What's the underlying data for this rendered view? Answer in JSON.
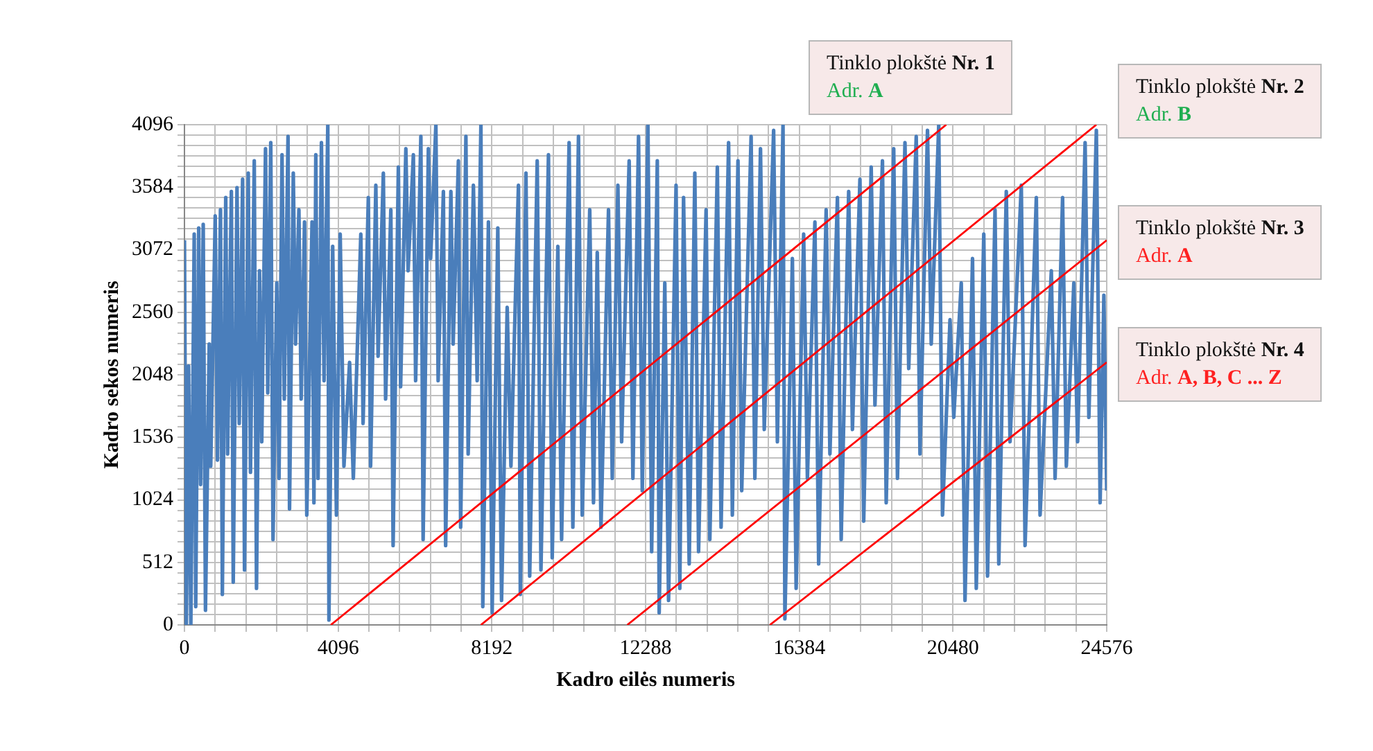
{
  "chart_data": {
    "type": "line",
    "xlabel": "Kadro eilės numeris",
    "ylabel": "Kadro sekos numeris",
    "xlim": [
      0,
      24576
    ],
    "ylim": [
      0,
      4096
    ],
    "xticks": [
      0,
      {
        "value": 819.2,
        "label": null
      },
      {
        "value": 1638.4,
        "label": null
      },
      {
        "value": 2457.6,
        "label": null
      },
      {
        "value": 3276.8,
        "label": null
      },
      4096,
      {
        "value": 4915.2,
        "label": null
      },
      {
        "value": 5734.4,
        "label": null
      },
      {
        "value": 6553.6,
        "label": null
      },
      {
        "value": 7372.8,
        "label": null
      },
      8192,
      {
        "value": 9011.2,
        "label": null
      },
      {
        "value": 9830.4,
        "label": null
      },
      {
        "value": 10649.6,
        "label": null
      },
      {
        "value": 11468.8,
        "label": null
      },
      12288,
      {
        "value": 13107.2,
        "label": null
      },
      {
        "value": 13926.4,
        "label": null
      },
      {
        "value": 14745.6,
        "label": null
      },
      {
        "value": 15564.8,
        "label": null
      },
      16384,
      {
        "value": 17203.2,
        "label": null
      },
      {
        "value": 18022.4,
        "label": null
      },
      {
        "value": 18841.6,
        "label": null
      },
      {
        "value": 19660.8,
        "label": null
      },
      20480,
      {
        "value": 21299.2,
        "label": null
      },
      {
        "value": 22118.4,
        "label": null
      },
      {
        "value": 22937.6,
        "label": null
      },
      {
        "value": 23756.8,
        "label": null
      },
      24576
    ],
    "yticks": [
      0,
      {
        "value": 85.33,
        "label": null
      },
      {
        "value": 170.67,
        "label": null
      },
      {
        "value": 256,
        "label": null
      },
      {
        "value": 341.33,
        "label": null
      },
      {
        "value": 426.67,
        "label": null
      },
      512,
      {
        "value": 597.33,
        "label": null
      },
      {
        "value": 682.67,
        "label": null
      },
      {
        "value": 768,
        "label": null
      },
      {
        "value": 853.33,
        "label": null
      },
      {
        "value": 938.67,
        "label": null
      },
      1024,
      {
        "value": 1109.33,
        "label": null
      },
      {
        "value": 1194.67,
        "label": null
      },
      {
        "value": 1280,
        "label": null
      },
      {
        "value": 1365.33,
        "label": null
      },
      {
        "value": 1450.67,
        "label": null
      },
      1536,
      {
        "value": 1621.33,
        "label": null
      },
      {
        "value": 1706.67,
        "label": null
      },
      {
        "value": 1792,
        "label": null
      },
      {
        "value": 1877.33,
        "label": null
      },
      {
        "value": 1962.67,
        "label": null
      },
      2048,
      {
        "value": 2133.33,
        "label": null
      },
      {
        "value": 2218.67,
        "label": null
      },
      {
        "value": 2304,
        "label": null
      },
      {
        "value": 2389.33,
        "label": null
      },
      {
        "value": 2474.67,
        "label": null
      },
      2560,
      {
        "value": 2645.33,
        "label": null
      },
      {
        "value": 2730.67,
        "label": null
      },
      {
        "value": 2816,
        "label": null
      },
      {
        "value": 2901.33,
        "label": null
      },
      {
        "value": 2986.67,
        "label": null
      },
      3072,
      {
        "value": 3157.33,
        "label": null
      },
      {
        "value": 3242.67,
        "label": null
      },
      {
        "value": 3328,
        "label": null
      },
      {
        "value": 3413.33,
        "label": null
      },
      {
        "value": 3498.67,
        "label": null
      },
      3584,
      {
        "value": 3669.33,
        "label": null
      },
      {
        "value": 3754.67,
        "label": null
      },
      {
        "value": 3840,
        "label": null
      },
      {
        "value": 3925.33,
        "label": null
      },
      {
        "value": 4010.67,
        "label": null
      },
      4096
    ],
    "grid": true,
    "legend": false,
    "marker": "none",
    "line_style": "solid",
    "annotations": [
      "Tinklo plokštė Nr. 1",
      "Adr. A",
      "Tinklo plokštė Nr. 2",
      "Adr. B",
      "Tinklo plokštė Nr. 3",
      "Adr. A",
      "Tinklo plokštė Nr. 4",
      "Adr. A, B, C ... Z"
    ],
    "series": [
      {
        "type": "line",
        "color": "#4a7ebb",
        "x": [
          0,
          50,
          110,
          170,
          260,
          300,
          380,
          430,
          500,
          560,
          660,
          700,
          820,
          880,
          960,
          1010,
          1100,
          1150,
          1250,
          1300,
          1400,
          1460,
          1550,
          1600,
          1700,
          1760,
          1860,
          1920,
          2000,
          2060,
          2160,
          2220,
          2300,
          2360,
          2460,
          2520,
          2600,
          2660,
          2760,
          2800,
          2900,
          2960,
          3050,
          3110,
          3200,
          3260,
          3400,
          3450,
          3500,
          3560,
          3650,
          3720,
          3820,
          3850,
          3950,
          4050,
          4150,
          4250,
          4400,
          4500,
          4700,
          4760,
          4900,
          4960,
          5100,
          5160,
          5300,
          5360,
          5500,
          5560,
          5700,
          5760,
          5900,
          5960,
          6100,
          6160,
          6300,
          6360,
          6500,
          6560,
          6700,
          6760,
          6900,
          6960,
          7100,
          7160,
          7300,
          7360,
          7500,
          7560,
          7700,
          7800,
          7900,
          7950,
          8100,
          8200,
          8350,
          8450,
          8600,
          8700,
          8900,
          8950,
          9100,
          9200,
          9400,
          9500,
          9700,
          9800,
          9950,
          10050,
          10250,
          10350,
          10500,
          10600,
          10800,
          10900,
          11000,
          11100,
          11300,
          11400,
          11550,
          11650,
          11850,
          11950,
          12100,
          12200,
          12350,
          12450,
          12600,
          12650,
          12800,
          12900,
          13100,
          13200,
          13300,
          13450,
          13600,
          13700,
          13900,
          14000,
          14200,
          14300,
          14500,
          14600,
          14750,
          14850,
          15100,
          15200,
          15350,
          15450,
          15700,
          15800,
          15950,
          16000,
          16200,
          16300,
          16500,
          16600,
          16800,
          16900,
          17100,
          17200,
          17400,
          17500,
          17700,
          17800,
          18000,
          18100,
          18300,
          18400,
          18600,
          18700,
          18900,
          19000,
          19200,
          19300,
          19500,
          19600,
          19800,
          19900,
          20100,
          20200,
          20400,
          20500,
          20700,
          20800,
          21000,
          21100,
          21300,
          21400,
          21600,
          21700,
          21900,
          22000,
          22300,
          22400,
          22700,
          22800,
          23100,
          23200,
          23400,
          23500,
          23700,
          23800,
          24000,
          24100,
          24300,
          24400,
          24500,
          24576
        ],
        "values": [
          3150,
          0,
          2120,
          0,
          3200,
          150,
          3250,
          1150,
          3280,
          120,
          2300,
          1300,
          3350,
          1350,
          3400,
          250,
          3500,
          1400,
          3550,
          350,
          3580,
          1650,
          3650,
          450,
          3700,
          1250,
          3800,
          300,
          2900,
          1500,
          3900,
          1900,
          3950,
          700,
          2800,
          1200,
          3850,
          1850,
          4000,
          950,
          3700,
          2300,
          3400,
          1850,
          3300,
          900,
          3300,
          1000,
          3850,
          1200,
          3950,
          2000,
          4096,
          40,
          3100,
          900,
          3200,
          1300,
          2150,
          1200,
          3200,
          1650,
          3500,
          1300,
          3600,
          2200,
          3700,
          1850,
          3400,
          650,
          3750,
          1950,
          3900,
          2900,
          3850,
          2000,
          4000,
          700,
          3900,
          3000,
          4096,
          2000,
          3550,
          650,
          3550,
          2300,
          3800,
          800,
          4000,
          1400,
          3600,
          2000,
          4096,
          150,
          3300,
          100,
          3250,
          200,
          2600,
          1300,
          3600,
          250,
          3700,
          400,
          3800,
          450,
          3850,
          550,
          3100,
          700,
          3950,
          800,
          4000,
          900,
          3400,
          1000,
          3050,
          800,
          3400,
          1200,
          3600,
          1500,
          3800,
          1200,
          4000,
          1100,
          4096,
          600,
          3800,
          100,
          2800,
          200,
          3600,
          300,
          3500,
          500,
          3700,
          600,
          3400,
          700,
          3750,
          800,
          3950,
          900,
          3800,
          1100,
          4000,
          1200,
          3900,
          1600,
          4050,
          1500,
          4096,
          50,
          3000,
          300,
          3200,
          1200,
          3300,
          500,
          3400,
          1400,
          3500,
          700,
          3550,
          1600,
          3650,
          850,
          3750,
          1800,
          3800,
          1000,
          3900,
          1200,
          3950,
          2100,
          4000,
          1400,
          4050,
          2300,
          4096,
          900,
          2500,
          1700,
          2800,
          200,
          3000,
          300,
          3200,
          400,
          3400,
          500,
          3550,
          1500,
          3600,
          650,
          3500,
          900,
          2900,
          1200,
          3500,
          1300,
          2800,
          1500,
          3950,
          1700,
          4050,
          1000,
          2700,
          1100
        ]
      },
      {
        "type": "line",
        "color": "#ff0000",
        "x": [
          3900,
          20300
        ],
        "values": [
          0,
          4096
        ]
      },
      {
        "type": "line",
        "color": "#ff0000",
        "x": [
          7900,
          24300
        ],
        "values": [
          0,
          4096
        ]
      },
      {
        "type": "line",
        "color": "#ff0000",
        "x": [
          11800,
          24576
        ],
        "values": [
          0,
          3150
        ]
      },
      {
        "type": "line",
        "color": "#ff0000",
        "x": [
          15600,
          24576
        ],
        "values": [
          0,
          2150
        ]
      }
    ]
  }
}
